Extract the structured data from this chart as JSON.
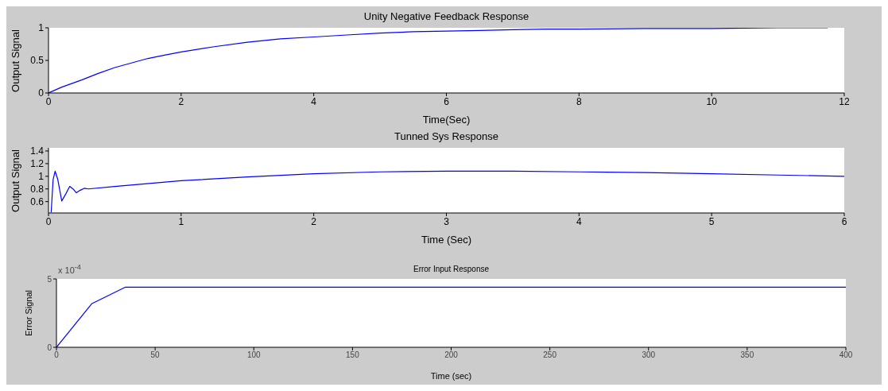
{
  "chart_data": [
    {
      "type": "line",
      "title": "Unity Negative Feedback Response",
      "xlabel": "Time(Sec)",
      "ylabel": "Output Signal",
      "xlim": [
        0,
        12
      ],
      "xticks": [
        0,
        2,
        4,
        6,
        8,
        10,
        12
      ],
      "ylim": [
        0,
        1
      ],
      "yticks": [
        0,
        0.5,
        1
      ],
      "series": [
        {
          "color": "#0000ff",
          "x": [
            0,
            0.2,
            0.5,
            0.75,
            1,
            1.25,
            1.5,
            1.75,
            2,
            2.5,
            3,
            3.5,
            4,
            4.5,
            5,
            5.5,
            6,
            6.5,
            7,
            7.5,
            8,
            9,
            10,
            11,
            11.75
          ],
          "values": [
            0,
            0.09,
            0.2,
            0.3,
            0.39,
            0.46,
            0.53,
            0.58,
            0.63,
            0.71,
            0.78,
            0.83,
            0.86,
            0.89,
            0.92,
            0.94,
            0.95,
            0.96,
            0.97,
            0.98,
            0.98,
            0.99,
            0.99,
            1,
            1
          ]
        }
      ]
    },
    {
      "type": "line",
      "title": "Tunned Sys Response",
      "xlabel": "Time (Sec)",
      "ylabel": "Output Signal",
      "xlim": [
        0,
        6
      ],
      "xticks": [
        0,
        1,
        2,
        3,
        4,
        5,
        6
      ],
      "ylim": [
        0.42,
        1.45
      ],
      "yticks": [
        0.6,
        0.8,
        1,
        1.2,
        1.4
      ],
      "series": [
        {
          "color": "#0000ff",
          "x": [
            0.02,
            0.035,
            0.05,
            0.07,
            0.1,
            0.13,
            0.16,
            0.19,
            0.21,
            0.24,
            0.27,
            0.3,
            0.5,
            1,
            1.5,
            2,
            2.5,
            3,
            3.5,
            4,
            4.5,
            5,
            5.5,
            6
          ],
          "values": [
            0.43,
            0.95,
            1.08,
            0.95,
            0.61,
            0.72,
            0.84,
            0.79,
            0.74,
            0.78,
            0.81,
            0.8,
            0.84,
            0.93,
            0.99,
            1.04,
            1.07,
            1.08,
            1.08,
            1.07,
            1.06,
            1.04,
            1.02,
            1.0
          ]
        }
      ]
    },
    {
      "type": "line",
      "title": "Error Input Response",
      "xlabel": "Time (sec)",
      "ylabel": "Error Signal",
      "annotations": [
        "x 10$^{-4}$"
      ],
      "xlim": [
        0,
        400
      ],
      "xticks": [
        0,
        50,
        100,
        150,
        200,
        250,
        300,
        350,
        400
      ],
      "ylim": [
        0,
        5
      ],
      "yticks": [
        0,
        5
      ],
      "series": [
        {
          "color": "#0000ff",
          "x": [
            0,
            18,
            35,
            400
          ],
          "values": [
            0,
            3.2,
            4.4,
            4.4
          ]
        }
      ]
    }
  ]
}
